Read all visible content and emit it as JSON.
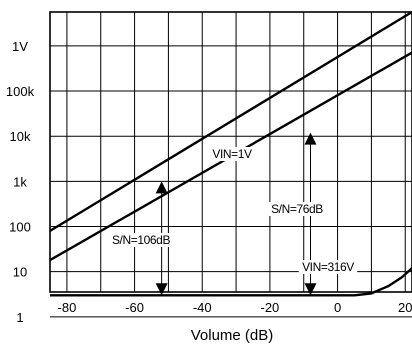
{
  "chart_data": {
    "type": "line",
    "xlabel": "Volume (dB)",
    "ylabel": "",
    "xlim": [
      -85,
      22
    ],
    "x_ticks": [
      -80,
      -60,
      -40,
      -20,
      0,
      20
    ],
    "x_tick_labels": [
      "-80",
      "-60",
      "-40",
      "-20",
      "0",
      "20"
    ],
    "y_scale": "log",
    "y_tick_values": [
      1,
      10,
      100,
      1000,
      10000,
      100000,
      1000000
    ],
    "y_tick_labels": [
      "1",
      "10",
      "100",
      "1k",
      "10k",
      "100k",
      "1V"
    ],
    "grid": true,
    "series": [
      {
        "label": "VIN=1V",
        "x": [
          -85,
          22
        ],
        "y": [
          80,
          5623413
        ]
      },
      {
        "label": "",
        "x": [
          -85,
          22
        ],
        "y": [
          18,
          708000
        ]
      },
      {
        "label": "VIN=316V",
        "x": [
          -85,
          5,
          10,
          15,
          19,
          22
        ],
        "y": [
          3,
          3,
          3.3,
          4.8,
          7.5,
          12
        ]
      }
    ],
    "annotations": [
      {
        "text": "S/N=106dB",
        "x": -52,
        "y_from": 3,
        "y_to": 1000
      },
      {
        "text": "S/N=76dB",
        "x": -8,
        "y_from": 3,
        "y_to": 12000
      }
    ]
  }
}
